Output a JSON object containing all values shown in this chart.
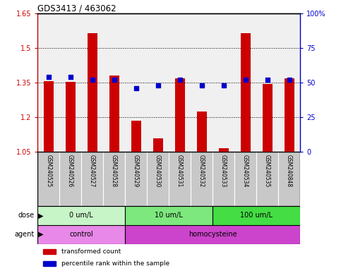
{
  "title": "GDS3413 / 463062",
  "samples": [
    "GSM240525",
    "GSM240526",
    "GSM240527",
    "GSM240528",
    "GSM240529",
    "GSM240530",
    "GSM240531",
    "GSM240532",
    "GSM240533",
    "GSM240534",
    "GSM240535",
    "GSM240848"
  ],
  "red_values": [
    1.355,
    1.352,
    1.565,
    1.38,
    1.185,
    1.108,
    1.37,
    1.225,
    1.065,
    1.565,
    1.345,
    1.37
  ],
  "blue_values": [
    54,
    54,
    52,
    52,
    46,
    48,
    52,
    48,
    48,
    52,
    52,
    52
  ],
  "ylim_left": [
    1.05,
    1.65
  ],
  "ylim_right": [
    0,
    100
  ],
  "yticks_left": [
    1.05,
    1.2,
    1.35,
    1.5,
    1.65
  ],
  "yticks_right": [
    0,
    25,
    50,
    75,
    100
  ],
  "ytick_labels_left": [
    "1.05",
    "1.2",
    "1.35",
    "1.5",
    "1.65"
  ],
  "ytick_labels_right": [
    "0",
    "25",
    "50",
    "75",
    "100%"
  ],
  "dose_groups": [
    {
      "label": "0 um/L",
      "start": 0,
      "end": 4,
      "color": "#c8f5c8"
    },
    {
      "label": "10 um/L",
      "start": 4,
      "end": 8,
      "color": "#7de87d"
    },
    {
      "label": "100 um/L",
      "start": 8,
      "end": 12,
      "color": "#44dd44"
    }
  ],
  "agent_groups": [
    {
      "label": "control",
      "start": 0,
      "end": 4,
      "color": "#e888e8"
    },
    {
      "label": "homocysteine",
      "start": 4,
      "end": 12,
      "color": "#cc44cc"
    }
  ],
  "dose_label": "dose",
  "agent_label": "agent",
  "bar_color": "#cc0000",
  "blue_color": "#0000cc",
  "bar_bottom": 1.05,
  "left_axis_color": "#cc0000",
  "right_axis_color": "#0000cc",
  "plot_bg": "#f0f0f0",
  "label_bg": "#c8c8c8"
}
